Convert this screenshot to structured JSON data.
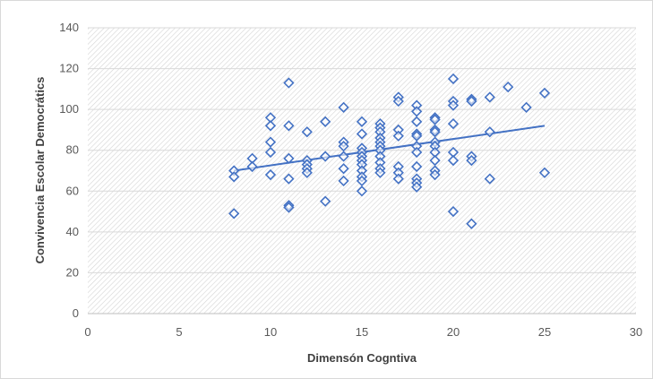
{
  "chart_data": {
    "type": "scatter",
    "title": "",
    "xlabel": "Dimensón Cogntiva",
    "ylabel": "Convivencia Escolar Democrátics",
    "xlim": [
      0,
      30
    ],
    "ylim": [
      0,
      140
    ],
    "xticks": [
      0,
      5,
      10,
      15,
      20,
      25,
      30
    ],
    "yticks": [
      0,
      20,
      40,
      60,
      80,
      100,
      120,
      140
    ],
    "grid": "horizontal",
    "legend": "none",
    "plot_area_pattern": "diagonal hatch",
    "colors": {
      "marker": "#4472c4",
      "trendline": "#4472c4",
      "gridline": "#d9d9d9",
      "text": "#595959"
    },
    "marker": "diamond-open",
    "trendline": {
      "type": "linear",
      "x": [
        8,
        25
      ],
      "y": [
        70,
        92
      ]
    },
    "points": [
      [
        8,
        70
      ],
      [
        8,
        67
      ],
      [
        8,
        49
      ],
      [
        9,
        76
      ],
      [
        9,
        72
      ],
      [
        10,
        96
      ],
      [
        10,
        92
      ],
      [
        10,
        84
      ],
      [
        10,
        79
      ],
      [
        10,
        68
      ],
      [
        11,
        113
      ],
      [
        11,
        92
      ],
      [
        11,
        76
      ],
      [
        11,
        66
      ],
      [
        11,
        53
      ],
      [
        11,
        52
      ],
      [
        12,
        89
      ],
      [
        12,
        75
      ],
      [
        12,
        73
      ],
      [
        12,
        71
      ],
      [
        12,
        69
      ],
      [
        13,
        94
      ],
      [
        13,
        77
      ],
      [
        13,
        55
      ],
      [
        14,
        101
      ],
      [
        14,
        84
      ],
      [
        14,
        82
      ],
      [
        14,
        77
      ],
      [
        14,
        71
      ],
      [
        14,
        65
      ],
      [
        15,
        94
      ],
      [
        15,
        88
      ],
      [
        15,
        81
      ],
      [
        15,
        79
      ],
      [
        15,
        77
      ],
      [
        15,
        75
      ],
      [
        15,
        73
      ],
      [
        15,
        70
      ],
      [
        15,
        67
      ],
      [
        15,
        65
      ],
      [
        15,
        60
      ],
      [
        16,
        93
      ],
      [
        16,
        91
      ],
      [
        16,
        89
      ],
      [
        16,
        86
      ],
      [
        16,
        84
      ],
      [
        16,
        82
      ],
      [
        16,
        80
      ],
      [
        16,
        77
      ],
      [
        16,
        74
      ],
      [
        16,
        71
      ],
      [
        16,
        69
      ],
      [
        17,
        106
      ],
      [
        17,
        104
      ],
      [
        17,
        90
      ],
      [
        17,
        87
      ],
      [
        17,
        72
      ],
      [
        17,
        69
      ],
      [
        17,
        66
      ],
      [
        18,
        102
      ],
      [
        18,
        99
      ],
      [
        18,
        94
      ],
      [
        18,
        88
      ],
      [
        18,
        87
      ],
      [
        18,
        82
      ],
      [
        18,
        79
      ],
      [
        18,
        72
      ],
      [
        18,
        66
      ],
      [
        18,
        64
      ],
      [
        18,
        62
      ],
      [
        19,
        96
      ],
      [
        19,
        95
      ],
      [
        19,
        90
      ],
      [
        19,
        89
      ],
      [
        19,
        84
      ],
      [
        19,
        82
      ],
      [
        19,
        79
      ],
      [
        19,
        75
      ],
      [
        19,
        70
      ],
      [
        19,
        68
      ],
      [
        20,
        115
      ],
      [
        20,
        104
      ],
      [
        20,
        102
      ],
      [
        20,
        93
      ],
      [
        20,
        79
      ],
      [
        20,
        75
      ],
      [
        20,
        50
      ],
      [
        21,
        105
      ],
      [
        21,
        104
      ],
      [
        21,
        77
      ],
      [
        21,
        75
      ],
      [
        21,
        44
      ],
      [
        22,
        106
      ],
      [
        22,
        89
      ],
      [
        22,
        66
      ],
      [
        23,
        111
      ],
      [
        24,
        101
      ],
      [
        25,
        108
      ],
      [
        25,
        69
      ]
    ]
  }
}
